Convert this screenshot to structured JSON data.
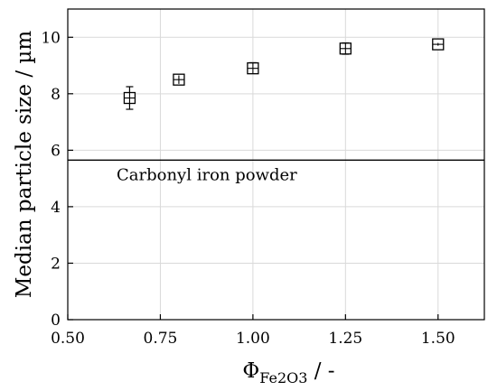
{
  "chart_data": {
    "type": "scatter",
    "xlabel_main": "Φ",
    "xlabel_sub": "Fe2O3",
    "xlabel_suffix": " / -",
    "ylabel": "Median particle size / µm",
    "xlim": [
      0.5,
      1.625
    ],
    "ylim": [
      0,
      11
    ],
    "xticks": [
      0.5,
      0.75,
      1.0,
      1.25,
      1.5
    ],
    "xtick_labels": [
      "0.50",
      "0.75",
      "1.00",
      "1.25",
      "1.50"
    ],
    "yticks": [
      0,
      2,
      4,
      6,
      8,
      10
    ],
    "ytick_labels": [
      "0",
      "2",
      "4",
      "6",
      "8",
      "10"
    ],
    "grid": true,
    "points": [
      {
        "x": 0.667,
        "y": 7.85,
        "err_low": 7.45,
        "err_high": 8.25
      },
      {
        "x": 0.8,
        "y": 8.5,
        "err_low": 8.35,
        "err_high": 8.65
      },
      {
        "x": 1.0,
        "y": 8.9,
        "err_low": 8.75,
        "err_high": 9.1
      },
      {
        "x": 1.25,
        "y": 9.6,
        "err_low": 9.4,
        "err_high": 9.8
      },
      {
        "x": 1.5,
        "y": 9.75,
        "err_low": 9.7,
        "err_high": 9.8
      }
    ],
    "reference_line": {
      "y": 5.65,
      "label": "Carbonyl iron powder"
    }
  }
}
